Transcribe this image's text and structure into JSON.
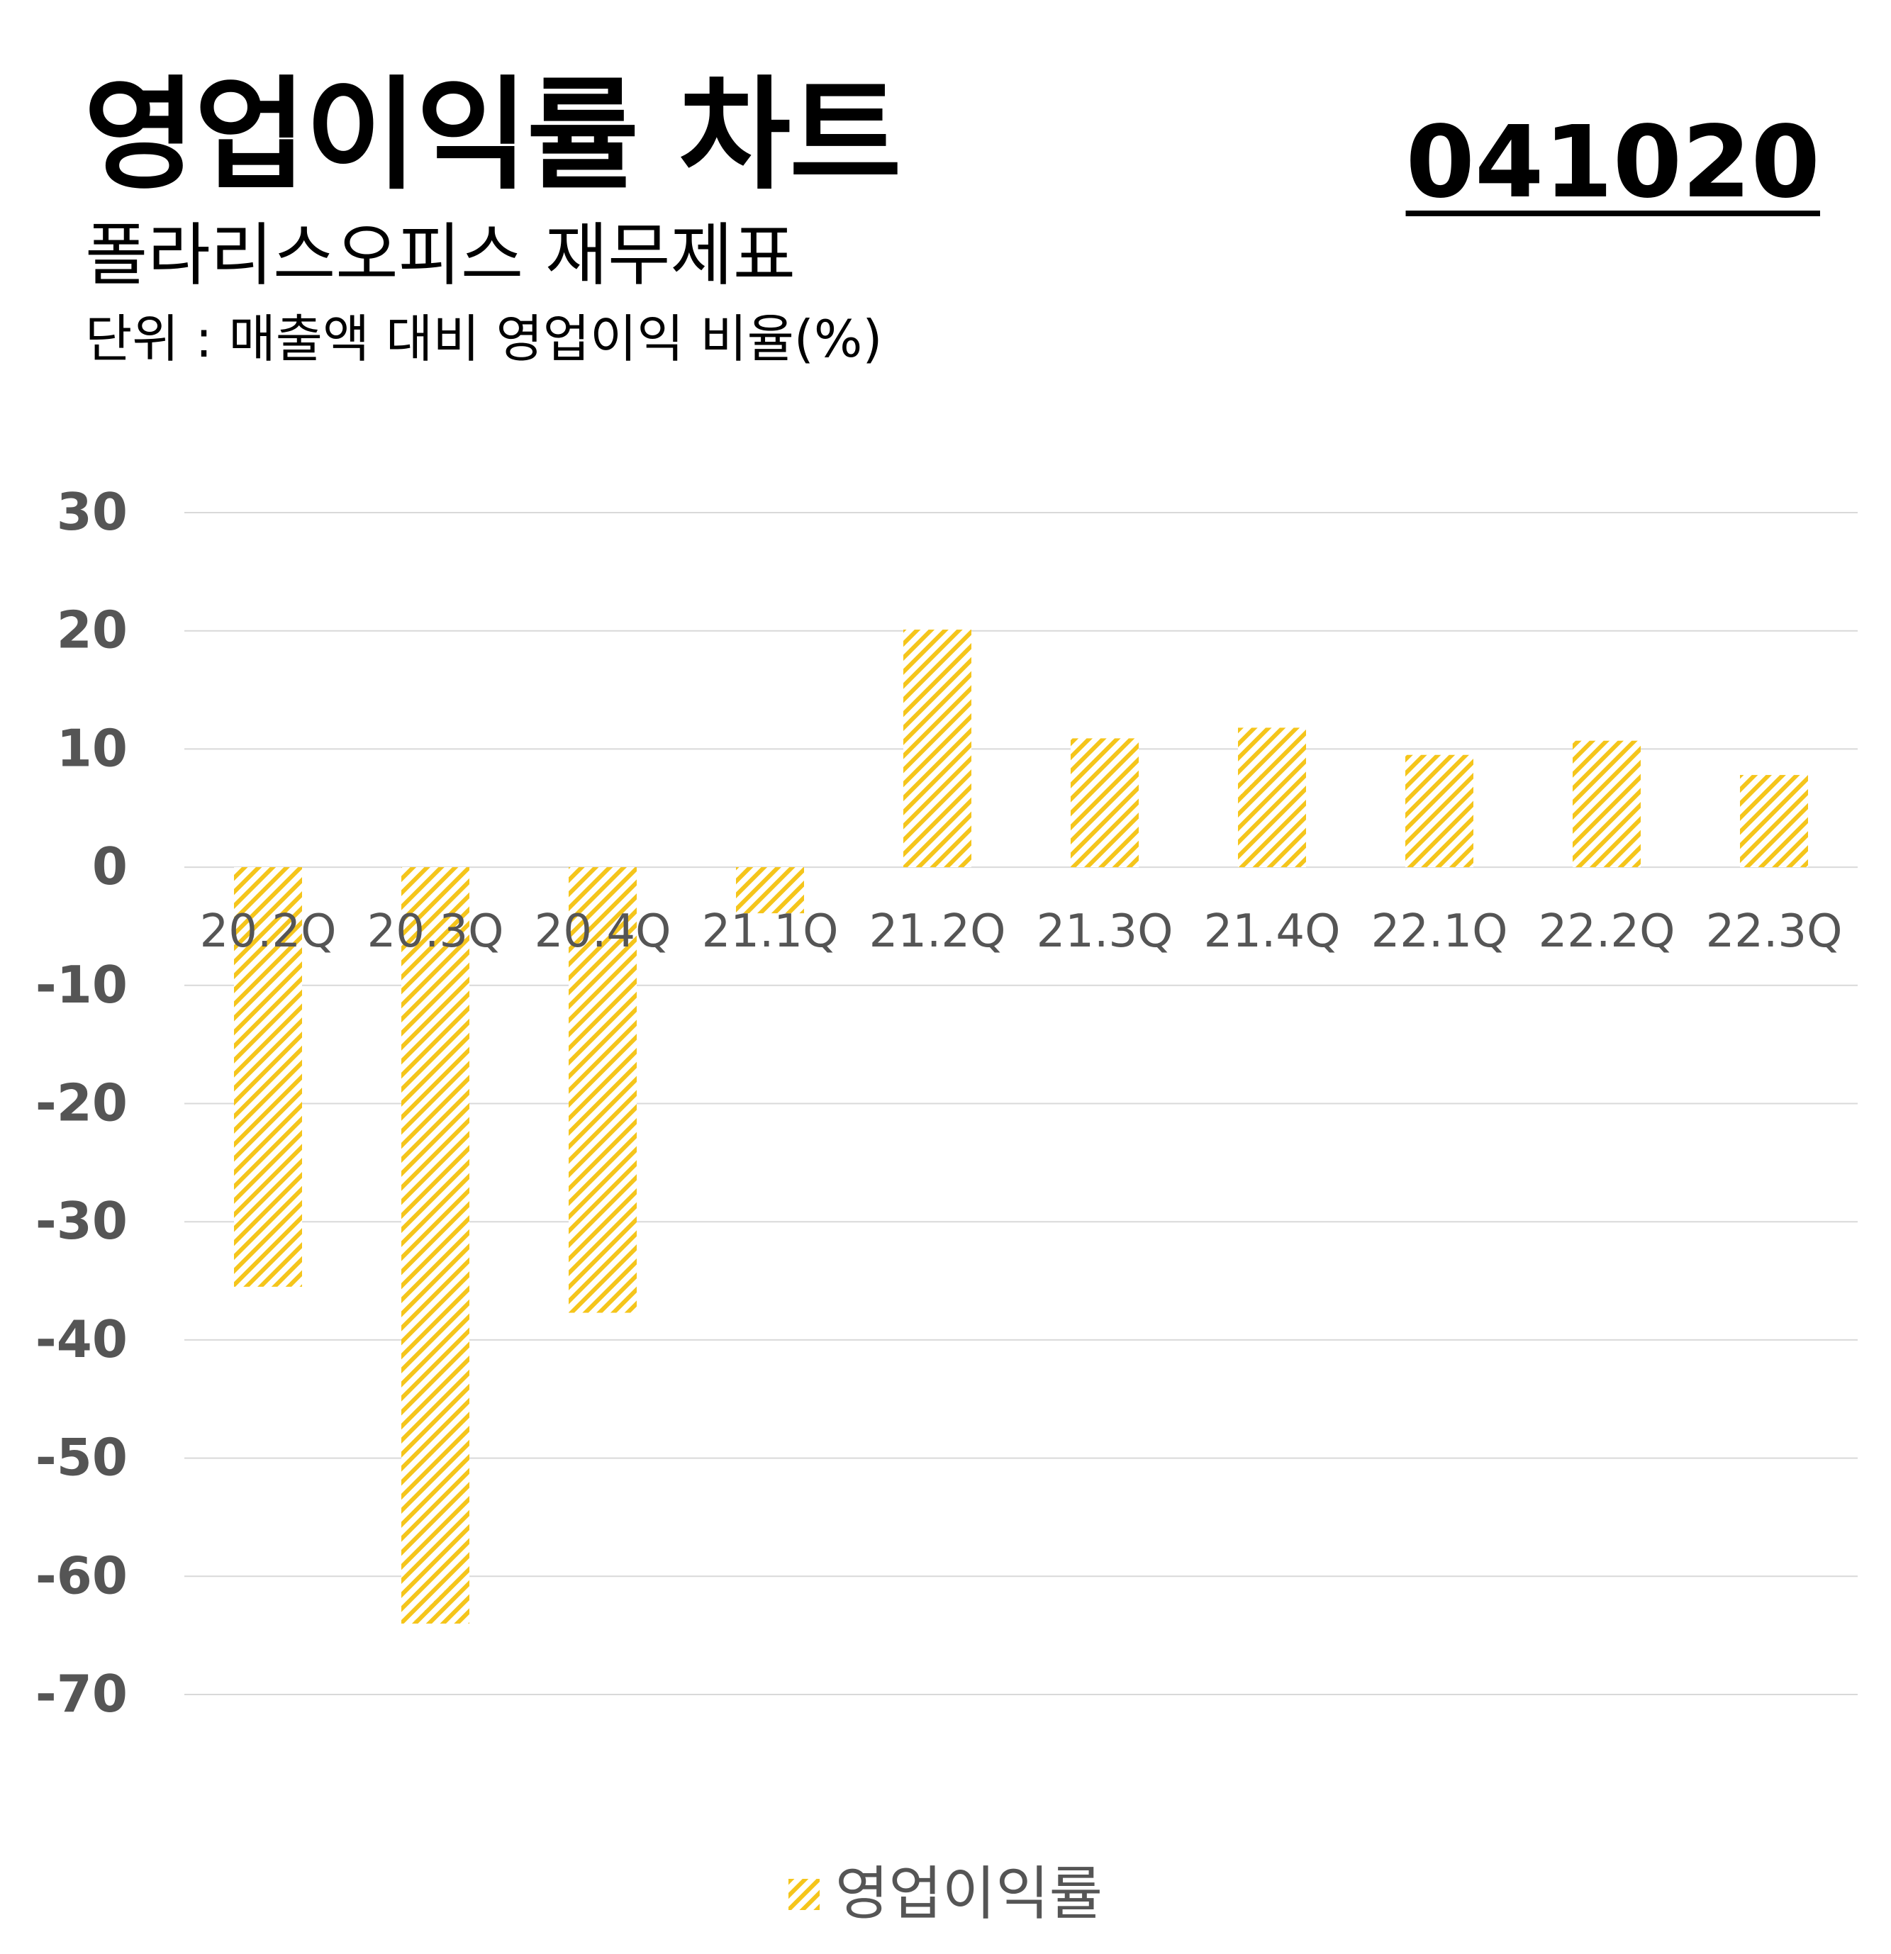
{
  "header": {
    "title": "영업이익률 차트",
    "subtitle": "폴라리스오피스 재무제표",
    "unit": "단위 : 매출액 대비 영업이익 비율(%)",
    "code": "041020"
  },
  "chart_data": {
    "type": "bar",
    "title": "영업이익률 차트",
    "categories": [
      "20.2Q",
      "20.3Q",
      "20.4Q",
      "21.1Q",
      "21.2Q",
      "21.3Q",
      "21.4Q",
      "22.1Q",
      "22.2Q",
      "22.3Q"
    ],
    "series": [
      {
        "name": "영업이익률",
        "values": [
          -35.5,
          -64.0,
          -37.7,
          -3.9,
          20.1,
          10.9,
          11.8,
          9.5,
          10.7,
          7.8
        ],
        "color": "#F5C51B"
      }
    ],
    "ylim": [
      -70,
      30
    ],
    "yticks": [
      "30",
      "20",
      "10",
      "0",
      "-10",
      "-20",
      "-30",
      "-40",
      "-50",
      "-60",
      "-70"
    ],
    "grid": true,
    "legend_position": "bottom",
    "pattern": "diagonal-hatch"
  }
}
